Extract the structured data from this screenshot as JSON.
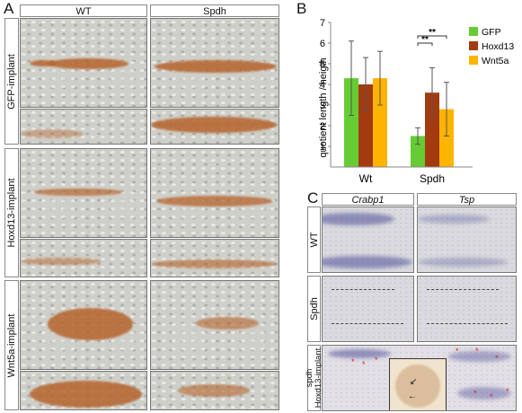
{
  "panels": {
    "A": {
      "letter": "A",
      "columns": [
        "WT",
        "Spdh"
      ],
      "rows": [
        "GFP-implant",
        "Hoxd13-implant",
        "Wnt5a-implant"
      ]
    },
    "B": {
      "letter": "B"
    },
    "C": {
      "letter": "C",
      "columns": [
        "Crabp1",
        "Tsp"
      ],
      "rows": [
        "WT",
        "Spdh",
        "spdh\nHoxd13-implant"
      ]
    }
  },
  "colors": {
    "GFP": "#66cc33",
    "Hoxd13": "#a33a10",
    "Wnt5a": "#ffb400"
  },
  "chart_data": {
    "type": "bar",
    "categories": [
      "Wt",
      "Spdh"
    ],
    "series": [
      {
        "name": "GFP",
        "values": [
          4.3,
          1.5
        ],
        "error": [
          1.8,
          0.4
        ]
      },
      {
        "name": "Hoxd13",
        "values": [
          4.0,
          3.6
        ],
        "error": [
          1.3,
          1.2
        ]
      },
      {
        "name": "Wnt5a",
        "values": [
          4.3,
          2.8
        ],
        "error": [
          1.3,
          1.3
        ]
      }
    ],
    "ylabel": "quotient length / heigth",
    "xlabel": "",
    "ylim": [
      0,
      7
    ],
    "yticks": [
      "1",
      "2",
      "3",
      "4",
      "5",
      "6",
      "7"
    ],
    "legend": "top-right",
    "significance": [
      {
        "text": "**",
        "between": [
          "GFP",
          "Hoxd13"
        ],
        "category": "Spdh"
      },
      {
        "text": "**",
        "between": [
          "GFP",
          "Wnt5a"
        ],
        "category": "Spdh"
      }
    ]
  }
}
